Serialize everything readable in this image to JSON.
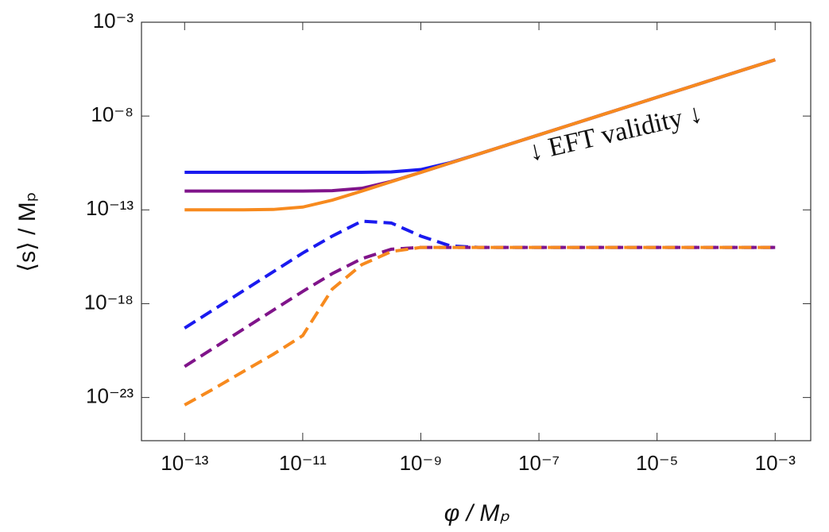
{
  "chart_data": {
    "type": "line",
    "xlabel": "φ / Mₚ",
    "ylabel": "⟨s⟩ / Mₚ",
    "annotation": "↓ EFT validity ↓",
    "xscale": "log",
    "yscale": "log",
    "xlim": [
      1.86e-14,
      0.004
    ],
    "ylim": [
      5e-26,
      0.001
    ],
    "xticks": [
      {
        "value": 1e-13,
        "label": "10⁻¹³"
      },
      {
        "value": 1e-11,
        "label": "10⁻¹¹"
      },
      {
        "value": 1e-09,
        "label": "10⁻⁹"
      },
      {
        "value": 1e-07,
        "label": "10⁻⁷"
      },
      {
        "value": 1e-05,
        "label": "10⁻⁵"
      },
      {
        "value": 0.001,
        "label": "10⁻³"
      }
    ],
    "yticks": [
      {
        "value": 1e-23,
        "label": "10⁻²³"
      },
      {
        "value": 1e-18,
        "label": "10⁻¹⁸"
      },
      {
        "value": 1e-13,
        "label": "10⁻¹³"
      },
      {
        "value": 1e-08,
        "label": "10⁻⁸"
      },
      {
        "value": 0.001,
        "label": "10⁻³"
      }
    ],
    "x": [
      1e-13,
      3.16e-13,
      1e-12,
      3.16e-12,
      1e-11,
      3.16e-11,
      1e-10,
      3.16e-10,
      1e-09,
      3.16e-09,
      1e-08,
      3.16e-08,
      1e-07,
      3.16e-07,
      1e-06,
      3.16e-06,
      1e-05,
      3.16e-05,
      0.0001,
      0.000316,
      0.001
    ],
    "series": [
      {
        "color": "#1a1aef",
        "dash": "solid",
        "values": [
          1e-11,
          1e-11,
          1e-11,
          1e-11,
          1e-11,
          1e-11,
          1e-11,
          1.05e-11,
          1.41e-11,
          3.3e-11,
          1e-10,
          3.16e-10,
          1e-09,
          3.16e-09,
          1e-08,
          3.16e-08,
          1e-07,
          3.16e-07,
          1e-06,
          3.16e-06,
          1e-05
        ]
      },
      {
        "color": "#80148a",
        "dash": "solid",
        "values": [
          1e-12,
          1e-12,
          1e-12,
          1e-12,
          1e-12,
          1.05e-12,
          1.41e-12,
          3.3e-12,
          1e-11,
          3.16e-11,
          1e-10,
          3.16e-10,
          1e-09,
          3.16e-09,
          1e-08,
          3.16e-08,
          1e-07,
          3.16e-07,
          1e-06,
          3.16e-06,
          1e-05
        ]
      },
      {
        "color": "#f78a1e",
        "dash": "solid",
        "values": [
          1e-13,
          1e-13,
          1.005e-13,
          1.05e-13,
          1.41e-13,
          3.3e-13,
          1e-12,
          3.16e-12,
          1e-11,
          3.16e-11,
          1e-10,
          3.16e-10,
          1e-09,
          3.16e-09,
          1e-08,
          3.16e-08,
          1e-07,
          3.16e-07,
          1e-06,
          3.16e-06,
          1e-05
        ]
      },
      {
        "color": "#1a1aef",
        "dash": "dashed",
        "values": [
          5e-20,
          5e-19,
          5e-18,
          5e-17,
          5e-16,
          4e-15,
          2.5e-14,
          2e-14,
          4e-15,
          1.2e-15,
          1e-15,
          1e-15,
          1e-15,
          1e-15,
          1e-15,
          1e-15,
          1e-15,
          1e-15,
          1e-15,
          1e-15,
          1e-15
        ]
      },
      {
        "color": "#80148a",
        "dash": "dashed",
        "values": [
          4.5e-22,
          4.5e-21,
          4.5e-20,
          4.5e-19,
          4.5e-18,
          4e-17,
          2.5e-16,
          8e-16,
          1e-15,
          1e-15,
          1e-15,
          1e-15,
          1e-15,
          1e-15,
          1e-15,
          1e-15,
          1e-15,
          1e-15,
          1e-15,
          1e-15,
          1e-15
        ]
      },
      {
        "color": "#f78a1e",
        "dash": "dashed",
        "values": [
          4e-24,
          3e-23,
          2.5e-22,
          2e-21,
          2e-20,
          6e-18,
          1.2e-16,
          6e-16,
          1e-15,
          1e-15,
          1e-15,
          1e-15,
          1e-15,
          1e-15,
          1e-15,
          1e-15,
          1e-15,
          1e-15,
          1e-15,
          1e-15,
          1e-15
        ]
      }
    ]
  }
}
